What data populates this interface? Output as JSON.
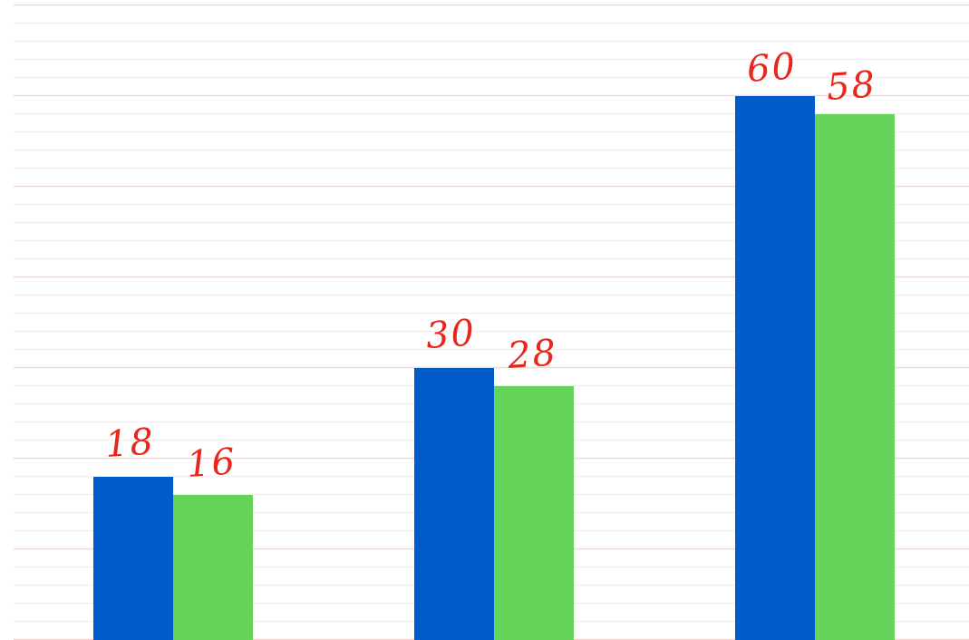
{
  "chart_data": {
    "type": "bar",
    "categories": [
      "",
      "",
      ""
    ],
    "series": [
      {
        "values": [
          18,
          30,
          60
        ],
        "color": "#005cc8"
      },
      {
        "values": [
          16,
          28,
          58
        ],
        "color": "#66d45a"
      }
    ],
    "data_labels": {
      "color": "#e8261c",
      "values": [
        [
          "18",
          "30",
          "60"
        ],
        [
          "16",
          "28",
          "58"
        ]
      ]
    },
    "title": "",
    "xlabel": "",
    "ylabel": "",
    "ylim": [
      0,
      70
    ],
    "grid": true,
    "grid_major_color": "#f7d3d3",
    "grid_minor_color": "#fbe9e9",
    "legend": "none"
  }
}
